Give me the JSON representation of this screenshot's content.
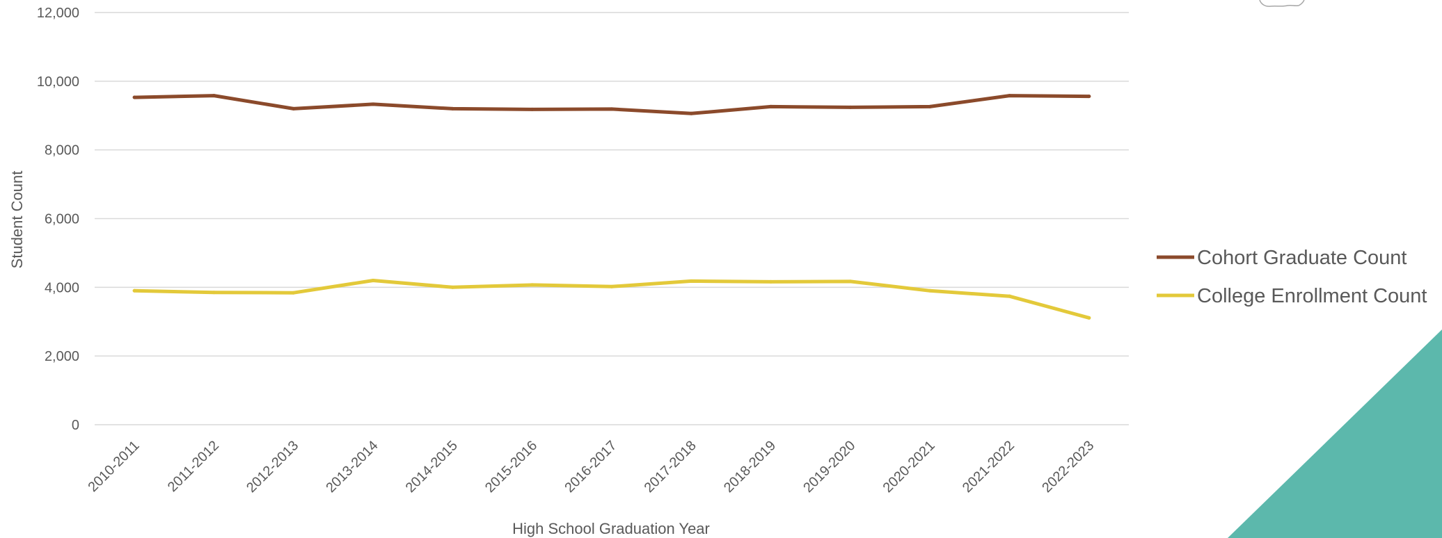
{
  "chart_data": {
    "type": "line",
    "categories": [
      "2010-2011",
      "2011-2012",
      "2012-2013",
      "2013-2014",
      "2014-2015",
      "2015-2016",
      "2016-2017",
      "2017-2018",
      "2018-2019",
      "2019-2020",
      "2020-2021",
      "2021-2022",
      "2022-2023"
    ],
    "series": [
      {
        "name": "Cohort Graduate Count",
        "color": "#8B4A2B",
        "values": [
          9530,
          9580,
          9200,
          9330,
          9200,
          9180,
          9190,
          9060,
          9260,
          9240,
          9260,
          9580,
          9560
        ]
      },
      {
        "name": "College Enrollment Count",
        "color": "#E3C93A",
        "values": [
          3900,
          3850,
          3840,
          4200,
          4000,
          4070,
          4020,
          4180,
          4160,
          4170,
          3900,
          3740,
          3110
        ]
      }
    ],
    "xlabel": "High School Graduation Year",
    "ylabel": "Student Count",
    "ylim": [
      0,
      12000
    ],
    "yticks": [
      "0",
      "2,000",
      "4,000",
      "6,000",
      "8,000",
      "10,000",
      "12,000"
    ],
    "grid": true,
    "legend_position": "right"
  },
  "decoration": {
    "corner_color": "#5CB8AC"
  }
}
